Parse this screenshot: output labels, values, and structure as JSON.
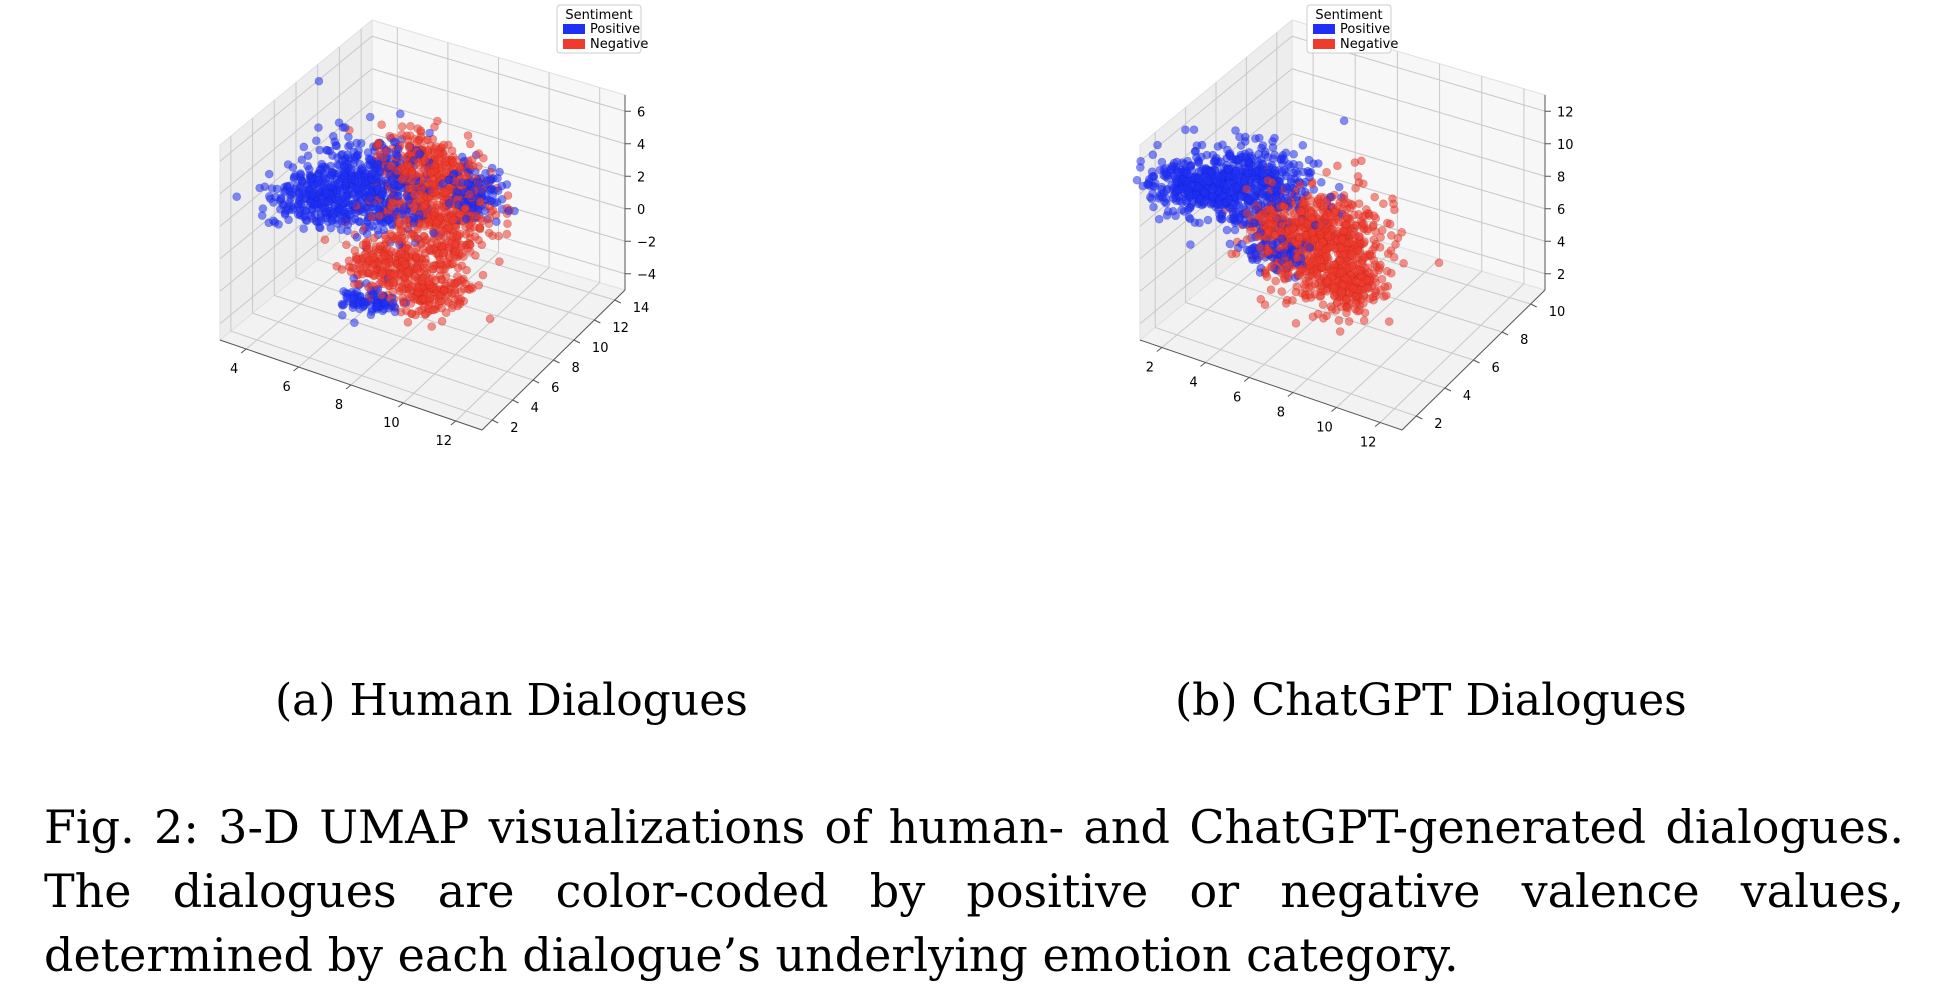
{
  "figure": {
    "caption": "Fig. 2: 3-D UMAP visualizations of human- and ChatGPT-generated dialogues. The dialogues are color-coded by positive or negative valence values, determined by each dialogue’s underlying emotion category."
  },
  "chart_data": [
    {
      "type": "scatter",
      "subcaption": "(a) Human Dialogues",
      "legend": {
        "title": "Sentiment",
        "placement": "top-right"
      },
      "series": [
        {
          "name": "Positive",
          "color": "#1f2ff5"
        },
        {
          "name": "Negative",
          "color": "#ee3b2d"
        }
      ],
      "x": {
        "ticks": [
          4,
          6,
          8,
          10,
          12
        ],
        "range": [
          3,
          13
        ]
      },
      "y": {
        "ticks": [
          2,
          4,
          6,
          8,
          10,
          12,
          14
        ],
        "range": [
          1,
          15
        ]
      },
      "z": {
        "ticks": [
          -4,
          -2,
          0,
          2,
          4,
          6
        ],
        "range": [
          -5,
          7
        ]
      },
      "grid": true
    },
    {
      "type": "scatter",
      "subcaption": "(b) ChatGPT Dialogues",
      "legend": {
        "title": "Sentiment",
        "placement": "top-right"
      },
      "series": [
        {
          "name": "Positive",
          "color": "#1f2ff5"
        },
        {
          "name": "Negative",
          "color": "#ee3b2d"
        }
      ],
      "x": {
        "ticks": [
          2,
          4,
          6,
          8,
          10,
          12
        ],
        "range": [
          1,
          13
        ]
      },
      "y": {
        "ticks": [
          2,
          4,
          6,
          8,
          10
        ],
        "range": [
          1,
          11
        ]
      },
      "z": {
        "ticks": [
          2,
          4,
          6,
          8,
          10,
          12
        ],
        "range": [
          1,
          13
        ]
      },
      "grid": true
    }
  ]
}
